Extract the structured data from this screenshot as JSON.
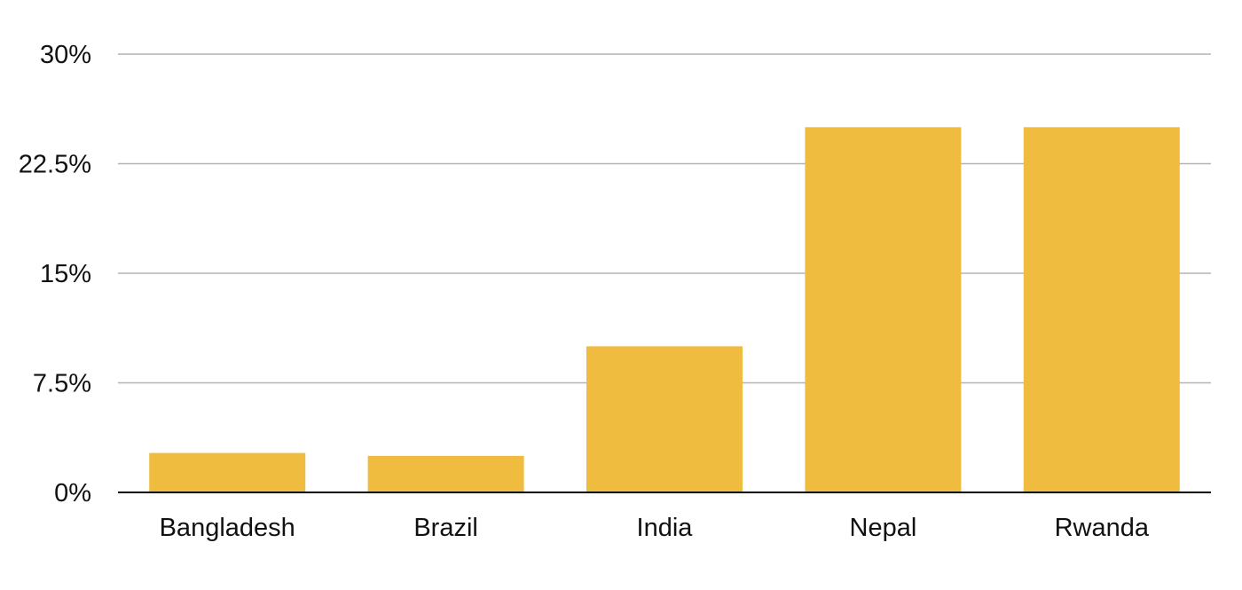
{
  "chart_data": {
    "type": "bar",
    "title": "",
    "xlabel": "",
    "ylabel": "",
    "categories": [
      "Bangladesh",
      "Brazil",
      "India",
      "Nepal",
      "Rwanda"
    ],
    "values": [
      2.7,
      2.5,
      10,
      25,
      25
    ],
    "ylim": [
      0,
      30
    ],
    "yticks": [
      0,
      7.5,
      15,
      22.5,
      30
    ],
    "ytick_labels": [
      "0%",
      "7.5%",
      "15%",
      "22.5%",
      "30%"
    ],
    "grid": true,
    "legend": "none",
    "bar_color": "#F0BC40"
  }
}
